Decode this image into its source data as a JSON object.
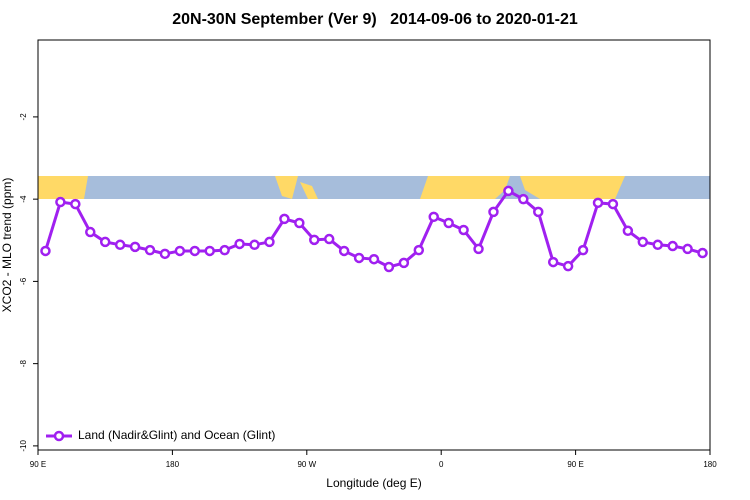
{
  "chart_data": {
    "type": "line",
    "title": "20N-30N September (Ver 9)   2014-09-06 to 2020-01-21",
    "x_label": "Longitude (deg E)",
    "y_label": "XCO2 - MLO trend (ppm)",
    "x": [
      95,
      105,
      115,
      125,
      135,
      145,
      155,
      165,
      175,
      185,
      195,
      205,
      215,
      225,
      235,
      245,
      255,
      265,
      275,
      285,
      295,
      305,
      315,
      325,
      335,
      345,
      355,
      365,
      375,
      385,
      395,
      405,
      415,
      425,
      435,
      445,
      455,
      465,
      475,
      485,
      495,
      505,
      515,
      525,
      535
    ],
    "series": [
      {
        "name": "Land (Nadir&Glint) and Ocean (Glint)",
        "color": "#a020f0",
        "values": [
          -5.26,
          -4.07,
          -4.12,
          -4.8,
          -5.04,
          -5.11,
          -5.16,
          -5.24,
          -5.33,
          -5.26,
          -5.26,
          -5.26,
          -5.24,
          -5.09,
          -5.11,
          -5.04,
          -4.48,
          -4.58,
          -4.99,
          -4.97,
          -5.26,
          -5.43,
          -5.46,
          -5.65,
          -5.55,
          -5.24,
          -4.43,
          -4.58,
          -4.75,
          -5.21,
          -4.31,
          -3.8,
          -4.0,
          -4.31,
          -5.53,
          -5.63,
          -5.24,
          -4.09,
          -4.12,
          -4.77,
          -5.04,
          -5.11,
          -5.14,
          -5.21,
          -5.31
        ]
      }
    ],
    "xlim": [
      90,
      540
    ],
    "ylim": [
      -10.1,
      -0.13
    ],
    "xticks": [
      {
        "value": 90,
        "label": "90 E"
      },
      180,
      {
        "value": 270,
        "label": "90 W"
      },
      {
        "value": 360,
        "label": "0"
      },
      {
        "value": 450,
        "label": "90 E"
      },
      {
        "value": 540,
        "label": "180"
      }
    ],
    "yticks": [
      -2,
      -4,
      -6,
      -8,
      -10
    ],
    "legend": "bottom-left"
  }
}
